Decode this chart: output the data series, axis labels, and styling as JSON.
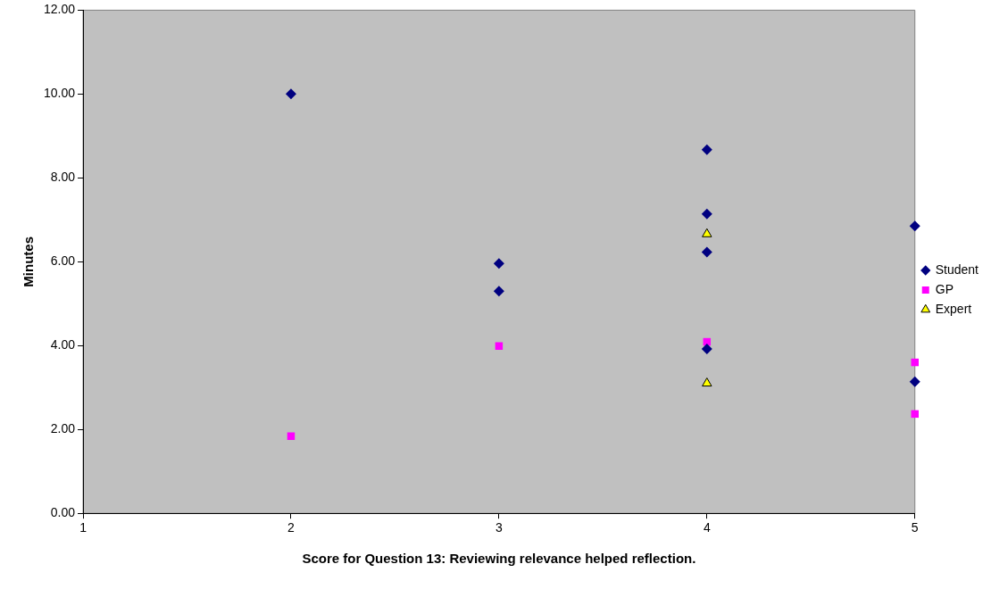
{
  "chart_data": {
    "type": "scatter",
    "xlabel": "Score for Question 13: Reviewing relevance helped reflection.",
    "ylabel": "Minutes",
    "xlim": [
      1,
      5
    ],
    "xticks": [
      1,
      2,
      3,
      4,
      5
    ],
    "ylim": [
      0,
      12
    ],
    "yticks": [
      {
        "value": 0,
        "label": "0.00"
      },
      {
        "value": 2,
        "label": "2.00"
      },
      {
        "value": 4,
        "label": "4.00"
      },
      {
        "value": 6,
        "label": "6.00"
      },
      {
        "value": 8,
        "label": "8.00"
      },
      {
        "value": 10,
        "label": "10.00"
      },
      {
        "value": 12,
        "label": "12.00"
      }
    ],
    "grid": false,
    "legend": "right",
    "series": [
      {
        "name": "Student",
        "color": "#000080",
        "marker": "diamond",
        "x": [
          2,
          3,
          3,
          4,
          4,
          4,
          4,
          5,
          5
        ],
        "values": [
          10.0,
          5.96,
          5.3,
          8.67,
          7.14,
          6.23,
          3.92,
          6.85,
          3.14
        ]
      },
      {
        "name": "GP",
        "color": "#ff00ff",
        "marker": "square",
        "x": [
          2,
          3,
          4,
          5,
          5
        ],
        "values": [
          1.84,
          3.99,
          4.09,
          3.6,
          2.37
        ]
      },
      {
        "name": "Expert",
        "color": "#ffff00",
        "marker": "triangle",
        "x": [
          4,
          4
        ],
        "values": [
          6.66,
          3.1
        ]
      }
    ]
  }
}
